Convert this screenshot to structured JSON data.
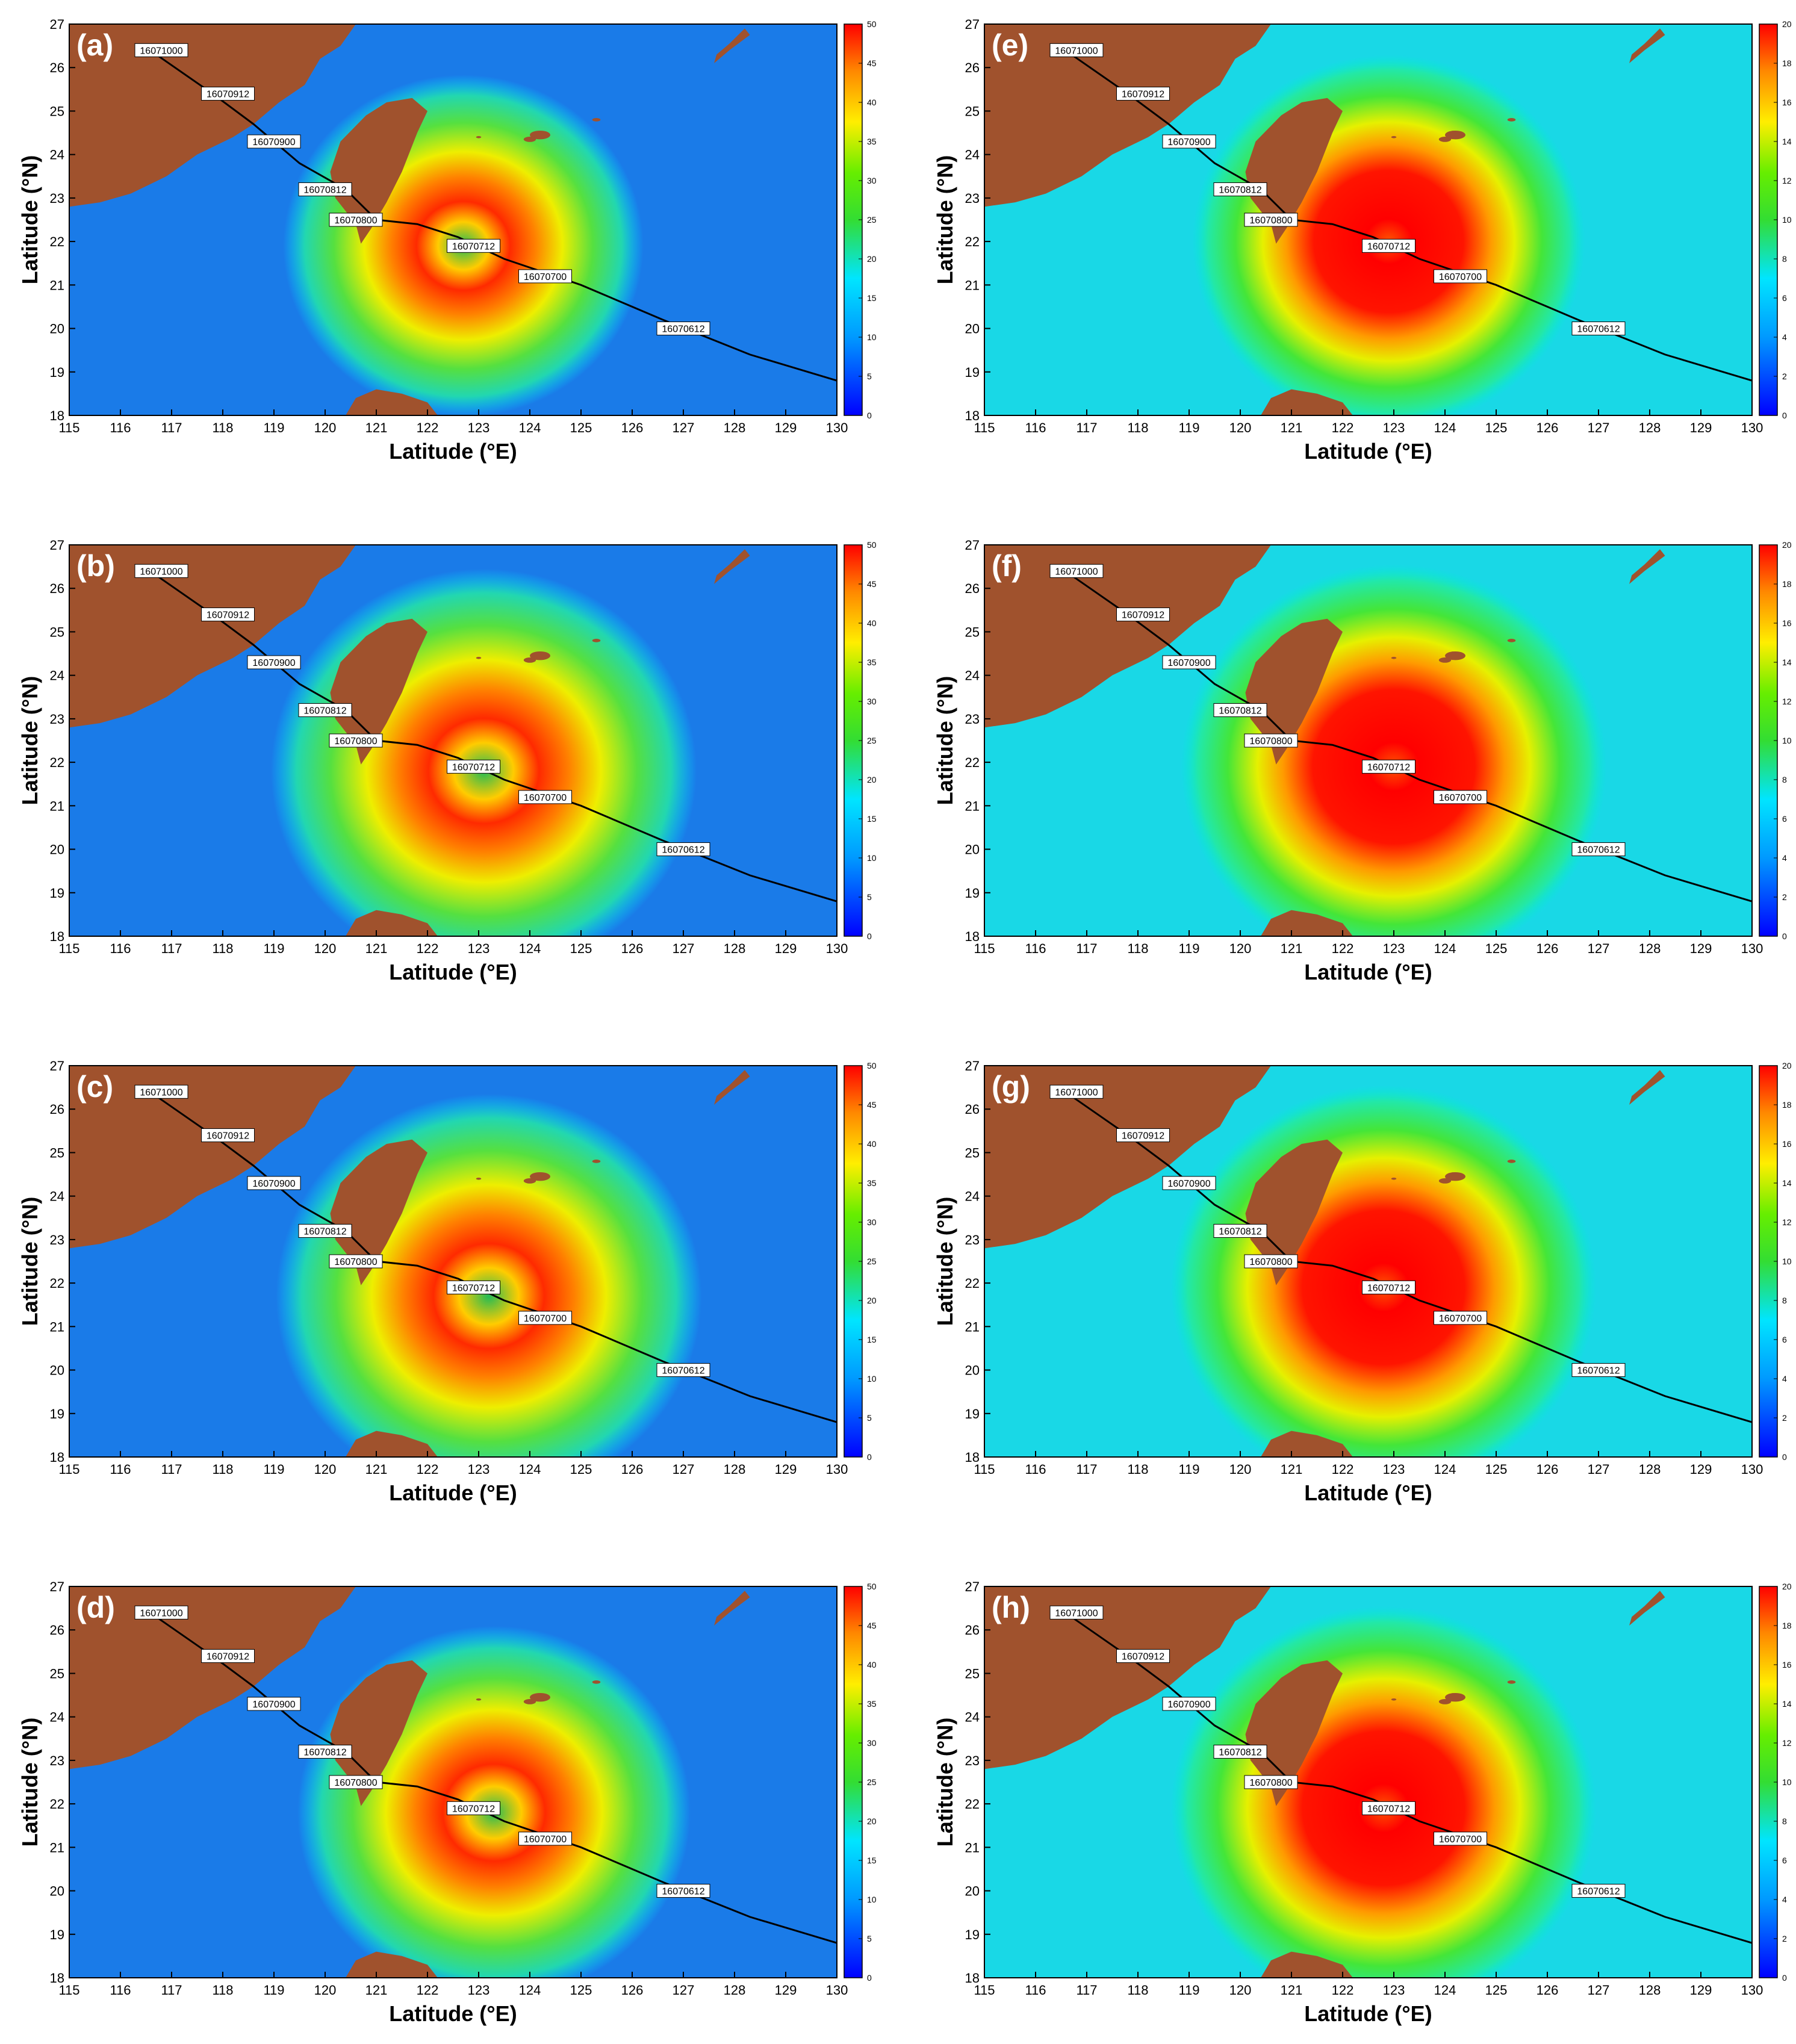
{
  "figure": {
    "x_axis_title": "Latitude (°E)",
    "y_axis_title": "Latitude (°N)",
    "x_ticks": [
      "115",
      "116",
      "117",
      "118",
      "119",
      "120",
      "121",
      "122",
      "123",
      "124",
      "125",
      "126",
      "127",
      "128",
      "129",
      "130"
    ],
    "y_ticks": [
      "18",
      "19",
      "20",
      "21",
      "22",
      "23",
      "24",
      "25",
      "26",
      "27"
    ],
    "colors": {
      "land": "#a0522d",
      "track": "#000000",
      "label_bg": "#ffffff"
    },
    "track": {
      "points": [
        {
          "lon": 116.7,
          "lat": 26.3
        },
        {
          "lon": 117.8,
          "lat": 25.4
        },
        {
          "lon": 118.6,
          "lat": 24.7
        },
        {
          "lon": 119.5,
          "lat": 23.8
        },
        {
          "lon": 120.4,
          "lat": 23.2
        },
        {
          "lon": 121.0,
          "lat": 22.5
        },
        {
          "lon": 121.8,
          "lat": 22.4
        },
        {
          "lon": 122.6,
          "lat": 22.1
        },
        {
          "lon": 123.5,
          "lat": 21.6
        },
        {
          "lon": 125.0,
          "lat": 21.0
        },
        {
          "lon": 126.6,
          "lat": 20.2
        },
        {
          "lon": 128.3,
          "lat": 19.4
        },
        {
          "lon": 130.0,
          "lat": 18.8
        }
      ],
      "labels": [
        {
          "text": "16071000",
          "lon": 116.8,
          "lat": 26.4
        },
        {
          "text": "16070912",
          "lon": 118.1,
          "lat": 25.4
        },
        {
          "text": "16070900",
          "lon": 119.0,
          "lat": 24.3
        },
        {
          "text": "16070812",
          "lon": 120.0,
          "lat": 23.2
        },
        {
          "text": "16070800",
          "lon": 120.6,
          "lat": 22.5
        },
        {
          "text": "16070712",
          "lon": 122.9,
          "lat": 21.9
        },
        {
          "text": "16070700",
          "lon": 124.3,
          "lat": 21.2
        },
        {
          "text": "16070612",
          "lon": 127.0,
          "lat": 20.0
        }
      ]
    },
    "panels": [
      {
        "letter": "(a)",
        "type": "wind",
        "colorbar": [
          "0",
          "5",
          "10",
          "15",
          "20",
          "25",
          "30",
          "35",
          "40",
          "45",
          "50"
        ],
        "eye_lon": 122.7,
        "eye_lat": 21.9,
        "radius": 1.1
      },
      {
        "letter": "(b)",
        "type": "wind",
        "colorbar": [
          "0",
          "5",
          "10",
          "15",
          "20",
          "25",
          "30",
          "35",
          "40",
          "45",
          "50"
        ],
        "eye_lon": 123.1,
        "eye_lat": 21.8,
        "radius": 1.3
      },
      {
        "letter": "(c)",
        "type": "wind",
        "colorbar": [
          "0",
          "5",
          "10",
          "15",
          "20",
          "25",
          "30",
          "35",
          "40",
          "45",
          "50"
        ],
        "eye_lon": 123.2,
        "eye_lat": 21.7,
        "radius": 1.3
      },
      {
        "letter": "(d)",
        "type": "wind",
        "colorbar": [
          "0",
          "5",
          "10",
          "15",
          "20",
          "25",
          "30",
          "35",
          "40",
          "45",
          "50"
        ],
        "eye_lon": 123.3,
        "eye_lat": 21.8,
        "radius": 1.2
      },
      {
        "letter": "(e)",
        "type": "wave",
        "colorbar": [
          "0",
          "2",
          "4",
          "6",
          "8",
          "10",
          "12",
          "14",
          "16",
          "18",
          "20"
        ],
        "eye_lon": 122.9,
        "eye_lat": 22.0,
        "radius": 1.2
      },
      {
        "letter": "(f)",
        "type": "wave",
        "colorbar": [
          "0",
          "2",
          "4",
          "6",
          "8",
          "10",
          "12",
          "14",
          "16",
          "18",
          "20"
        ],
        "eye_lon": 123.0,
        "eye_lat": 21.9,
        "radius": 1.3
      },
      {
        "letter": "(g)",
        "type": "wave",
        "colorbar": [
          "0",
          "2",
          "4",
          "6",
          "8",
          "10",
          "12",
          "14",
          "16",
          "18",
          "20"
        ],
        "eye_lon": 122.8,
        "eye_lat": 21.9,
        "radius": 1.3
      },
      {
        "letter": "(h)",
        "type": "wave",
        "colorbar": [
          "0",
          "2",
          "4",
          "6",
          "8",
          "10",
          "12",
          "14",
          "16",
          "18",
          "20"
        ],
        "eye_lon": 122.8,
        "eye_lat": 21.9,
        "radius": 1.3
      }
    ]
  }
}
